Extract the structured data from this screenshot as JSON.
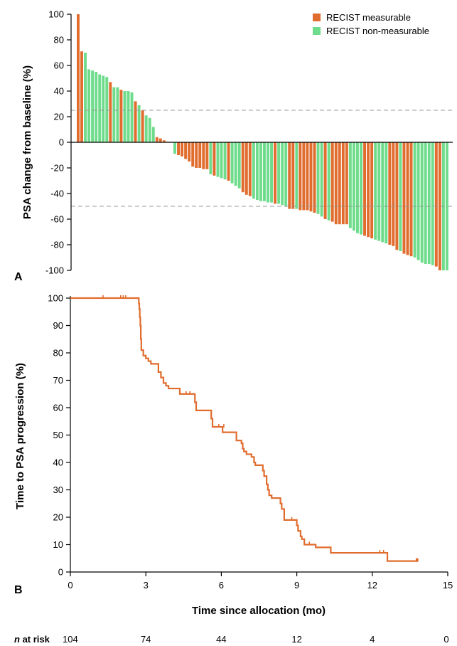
{
  "chart_data": [
    {
      "type": "bar",
      "panel_label": "A",
      "ylabel": "PSA change from baseline (%)",
      "ylim": [
        -100,
        100
      ],
      "yticks": [
        100,
        80,
        60,
        40,
        20,
        0,
        -20,
        -40,
        -60,
        -80,
        -100
      ],
      "reference_lines": [
        25,
        -50
      ],
      "legend": {
        "placement": "top-right",
        "entries": [
          {
            "label": "RECIST measurable",
            "color": "#e06c2e"
          },
          {
            "label": "RECIST non-measurable",
            "color": "#6fdc8c"
          }
        ]
      },
      "series": [
        {
          "name": "RECIST measurable",
          "color": "#e06c2e"
        },
        {
          "name": "RECIST non-measurable",
          "color": "#6fdc8c"
        }
      ],
      "bars": [
        {
          "value": 100,
          "group": 0
        },
        {
          "value": 71,
          "group": 0
        },
        {
          "value": 70,
          "group": 1
        },
        {
          "value": 57,
          "group": 1
        },
        {
          "value": 56,
          "group": 1
        },
        {
          "value": 55,
          "group": 1
        },
        {
          "value": 53,
          "group": 1
        },
        {
          "value": 52,
          "group": 1
        },
        {
          "value": 51,
          "group": 1
        },
        {
          "value": 47,
          "group": 0
        },
        {
          "value": 43,
          "group": 1
        },
        {
          "value": 43,
          "group": 1
        },
        {
          "value": 41,
          "group": 0
        },
        {
          "value": 40,
          "group": 1
        },
        {
          "value": 40,
          "group": 1
        },
        {
          "value": 39,
          "group": 1
        },
        {
          "value": 32,
          "group": 0
        },
        {
          "value": 29,
          "group": 1
        },
        {
          "value": 25,
          "group": 0
        },
        {
          "value": 21,
          "group": 1
        },
        {
          "value": 19,
          "group": 1
        },
        {
          "value": 12,
          "group": 1
        },
        {
          "value": 4,
          "group": 0
        },
        {
          "value": 3,
          "group": 0
        },
        {
          "value": 1.5,
          "group": 0
        },
        {
          "value": 0.5,
          "group": 0
        },
        {
          "value": 0.3,
          "group": 0
        },
        {
          "value": -9,
          "group": 1
        },
        {
          "value": -10,
          "group": 0
        },
        {
          "value": -11,
          "group": 0
        },
        {
          "value": -13,
          "group": 0
        },
        {
          "value": -15,
          "group": 0
        },
        {
          "value": -19,
          "group": 0
        },
        {
          "value": -20,
          "group": 0
        },
        {
          "value": -20,
          "group": 0
        },
        {
          "value": -21,
          "group": 0
        },
        {
          "value": -21,
          "group": 0
        },
        {
          "value": -25,
          "group": 1
        },
        {
          "value": -26,
          "group": 0
        },
        {
          "value": -27,
          "group": 1
        },
        {
          "value": -28,
          "group": 1
        },
        {
          "value": -29,
          "group": 1
        },
        {
          "value": -30,
          "group": 0
        },
        {
          "value": -32,
          "group": 1
        },
        {
          "value": -34,
          "group": 1
        },
        {
          "value": -36,
          "group": 1
        },
        {
          "value": -39,
          "group": 0
        },
        {
          "value": -41,
          "group": 0
        },
        {
          "value": -42,
          "group": 0
        },
        {
          "value": -44,
          "group": 1
        },
        {
          "value": -45,
          "group": 1
        },
        {
          "value": -46,
          "group": 1
        },
        {
          "value": -46,
          "group": 1
        },
        {
          "value": -47,
          "group": 1
        },
        {
          "value": -47,
          "group": 1
        },
        {
          "value": -48,
          "group": 0
        },
        {
          "value": -48,
          "group": 1
        },
        {
          "value": -49,
          "group": 1
        },
        {
          "value": -50,
          "group": 1
        },
        {
          "value": -52,
          "group": 0
        },
        {
          "value": -52,
          "group": 0
        },
        {
          "value": -52,
          "group": 1
        },
        {
          "value": -53,
          "group": 0
        },
        {
          "value": -53,
          "group": 0
        },
        {
          "value": -53,
          "group": 0
        },
        {
          "value": -54,
          "group": 0
        },
        {
          "value": -55,
          "group": 0
        },
        {
          "value": -56,
          "group": 1
        },
        {
          "value": -58,
          "group": 1
        },
        {
          "value": -60,
          "group": 0
        },
        {
          "value": -61,
          "group": 1
        },
        {
          "value": -62,
          "group": 0
        },
        {
          "value": -64,
          "group": 0
        },
        {
          "value": -64,
          "group": 0
        },
        {
          "value": -64,
          "group": 0
        },
        {
          "value": -64,
          "group": 0
        },
        {
          "value": -67,
          "group": 1
        },
        {
          "value": -69,
          "group": 1
        },
        {
          "value": -71,
          "group": 1
        },
        {
          "value": -72,
          "group": 1
        },
        {
          "value": -73,
          "group": 0
        },
        {
          "value": -74,
          "group": 0
        },
        {
          "value": -75,
          "group": 0
        },
        {
          "value": -76,
          "group": 1
        },
        {
          "value": -77,
          "group": 1
        },
        {
          "value": -78,
          "group": 1
        },
        {
          "value": -79,
          "group": 1
        },
        {
          "value": -80,
          "group": 0
        },
        {
          "value": -81,
          "group": 0
        },
        {
          "value": -84,
          "group": 0
        },
        {
          "value": -85,
          "group": 1
        },
        {
          "value": -87,
          "group": 0
        },
        {
          "value": -88,
          "group": 0
        },
        {
          "value": -89,
          "group": 0
        },
        {
          "value": -90,
          "group": 1
        },
        {
          "value": -92,
          "group": 1
        },
        {
          "value": -94,
          "group": 1
        },
        {
          "value": -95,
          "group": 1
        },
        {
          "value": -95,
          "group": 1
        },
        {
          "value": -96,
          "group": 1
        },
        {
          "value": -97,
          "group": 0
        },
        {
          "value": -100,
          "group": 0
        },
        {
          "value": -100,
          "group": 1
        },
        {
          "value": -100,
          "group": 1
        }
      ]
    },
    {
      "type": "line",
      "panel_label": "B",
      "xlabel": "Time since allocation (mo)",
      "ylabel": "Time to PSA progression (%)",
      "xlim": [
        0,
        15
      ],
      "ylim": [
        0,
        100
      ],
      "xticks": [
        0,
        3,
        6,
        9,
        12,
        15
      ],
      "yticks": [
        0,
        10,
        20,
        30,
        40,
        50,
        60,
        70,
        80,
        90,
        100
      ],
      "color": "#e06c2e",
      "series": [
        {
          "points": [
            [
              0,
              100
            ],
            [
              2.7,
              100
            ],
            [
              2.72,
              98
            ],
            [
              2.74,
              96
            ],
            [
              2.76,
              93
            ],
            [
              2.78,
              90
            ],
            [
              2.8,
              85
            ],
            [
              2.82,
              81
            ],
            [
              2.9,
              79
            ],
            [
              3.0,
              78
            ],
            [
              3.1,
              77
            ],
            [
              3.2,
              76
            ],
            [
              3.45,
              76
            ],
            [
              3.5,
              73
            ],
            [
              3.6,
              71
            ],
            [
              3.7,
              69
            ],
            [
              3.8,
              68
            ],
            [
              3.9,
              67
            ],
            [
              4.3,
              67
            ],
            [
              4.35,
              65
            ],
            [
              4.9,
              65
            ],
            [
              4.95,
              62
            ],
            [
              5.0,
              59
            ],
            [
              5.55,
              59
            ],
            [
              5.6,
              56
            ],
            [
              5.65,
              53
            ],
            [
              6.0,
              53
            ],
            [
              6.05,
              51
            ],
            [
              6.55,
              51
            ],
            [
              6.6,
              48
            ],
            [
              6.8,
              47
            ],
            [
              6.85,
              45
            ],
            [
              6.9,
              44
            ],
            [
              7.0,
              43
            ],
            [
              7.2,
              42
            ],
            [
              7.3,
              40
            ],
            [
              7.35,
              39
            ],
            [
              7.6,
              39
            ],
            [
              7.65,
              37
            ],
            [
              7.7,
              35
            ],
            [
              7.8,
              32
            ],
            [
              7.85,
              30
            ],
            [
              7.9,
              28
            ],
            [
              8.0,
              27
            ],
            [
              8.3,
              27
            ],
            [
              8.35,
              25
            ],
            [
              8.4,
              23
            ],
            [
              8.5,
              19
            ],
            [
              8.95,
              19
            ],
            [
              9.0,
              17
            ],
            [
              9.05,
              15
            ],
            [
              9.15,
              13
            ],
            [
              9.2,
              12
            ],
            [
              9.3,
              10
            ],
            [
              9.7,
              10
            ],
            [
              9.75,
              9
            ],
            [
              10.3,
              9
            ],
            [
              10.35,
              7
            ],
            [
              12.55,
              7
            ],
            [
              12.6,
              4
            ],
            [
              13.8,
              4
            ],
            [
              13.8,
              5
            ]
          ],
          "censored": [
            [
              1.3,
              100
            ],
            [
              2.0,
              100
            ],
            [
              2.1,
              100
            ],
            [
              2.2,
              100
            ],
            [
              4.6,
              65
            ],
            [
              4.75,
              65
            ],
            [
              5.9,
              53
            ],
            [
              6.1,
              53
            ],
            [
              8.8,
              19
            ],
            [
              9.5,
              10
            ],
            [
              12.3,
              7
            ],
            [
              12.45,
              7
            ],
            [
              13.75,
              4
            ]
          ]
        }
      ],
      "at_risk": {
        "label_bold": "n",
        "label_rest": " at risk",
        "times": [
          0,
          3,
          6,
          9,
          12,
          15
        ],
        "counts": [
          "104",
          "74",
          "44",
          "12",
          "4",
          "0"
        ]
      }
    }
  ]
}
